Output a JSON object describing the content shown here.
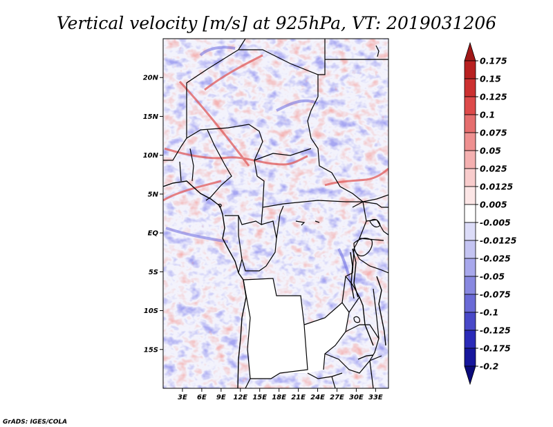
{
  "title": "Vertical velocity [m/s] at 925hPa, VT: 2019031206",
  "credit": "GrADS: IGES/COLA",
  "map": {
    "lon_range": [
      0,
      35
    ],
    "lat_range": [
      -20,
      25
    ],
    "lat_labels": [
      {
        "lat": 20,
        "label": "20N"
      },
      {
        "lat": 15,
        "label": "15N"
      },
      {
        "lat": 10,
        "label": "10N"
      },
      {
        "lat": 5,
        "label": "5N"
      },
      {
        "lat": 0,
        "label": "EQ"
      },
      {
        "lat": -5,
        "label": "5S"
      },
      {
        "lat": -10,
        "label": "10S"
      },
      {
        "lat": -15,
        "label": "15S"
      }
    ],
    "lon_labels": [
      {
        "lon": 3,
        "label": "3E"
      },
      {
        "lon": 6,
        "label": "6E"
      },
      {
        "lon": 9,
        "label": "9E"
      },
      {
        "lon": 12,
        "label": "12E"
      },
      {
        "lon": 15,
        "label": "15E"
      },
      {
        "lon": 18,
        "label": "18E"
      },
      {
        "lon": 21,
        "label": "21E"
      },
      {
        "lon": 24,
        "label": "24E"
      },
      {
        "lon": 27,
        "label": "27E"
      },
      {
        "lon": 30,
        "label": "30E"
      },
      {
        "lon": 33,
        "label": "33E"
      }
    ]
  },
  "colorbar": {
    "labels": [
      "0.175",
      "0.15",
      "0.125",
      "0.1",
      "0.075",
      "0.05",
      "0.025",
      "0.0125",
      "0.005",
      "-0.005",
      "-0.0125",
      "-0.025",
      "-0.05",
      "-0.075",
      "-0.1",
      "-0.125",
      "-0.175",
      "-0.2"
    ],
    "colors": [
      "#a01818",
      "#b82020",
      "#cc3030",
      "#dd4a4a",
      "#e56e6e",
      "#ee9090",
      "#f4b0b0",
      "#f8cccc",
      "#fce6e6",
      "#ffffff",
      "#dcdcf8",
      "#c4c4f2",
      "#a8a8ec",
      "#8888e0",
      "#6a6ad6",
      "#4848c8",
      "#2a2ab8",
      "#16169c",
      "#0a0a7a"
    ]
  },
  "colors": {
    "positive": "#e04848",
    "negative": "#5050d8",
    "border": "#000000",
    "land_plain": "#ffffff"
  }
}
